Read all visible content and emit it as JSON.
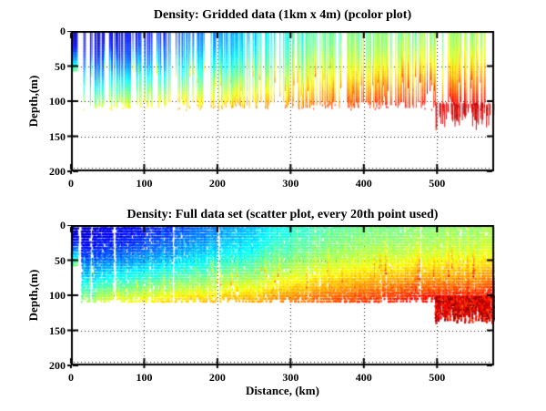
{
  "colors": {
    "background": "#ffffff",
    "axes": "#000000",
    "grid": "#222222",
    "text": "#000000"
  },
  "chart_data": [
    {
      "type": "pcolor",
      "title": "Density: Gridded data (1km x 4m) (pcolor plot)",
      "xlabel": "",
      "ylabel": "Depth,(m)",
      "xlim": [
        0,
        578
      ],
      "ylim": [
        200,
        0
      ],
      "y_reversed": true,
      "xticks": [
        0,
        100,
        200,
        300,
        400,
        500
      ],
      "yticks": [
        0,
        50,
        100,
        150,
        200
      ],
      "xtick_labels": [
        "0",
        "100",
        "200",
        "300",
        "400",
        "500"
      ],
      "ytick_labels": [
        "0",
        "50",
        "100",
        "150",
        "200"
      ],
      "grid": "dotted",
      "legend": null,
      "colormap": "jet",
      "field_model": {
        "seed": 20107,
        "column_pitch_km": 1,
        "cell_height_m": 4,
        "gap_fraction": 0.4,
        "long_gap_probability": 0.045,
        "surface_profile": {
          "x_km": [
            0,
            80,
            160,
            230,
            290,
            350,
            420,
            490,
            578
          ],
          "value": [
            0.05,
            0.13,
            0.22,
            0.3,
            0.4,
            0.47,
            0.5,
            0.52,
            0.54
          ]
        },
        "deep_profile": {
          "x_km": [
            0,
            60,
            150,
            250,
            350,
            460,
            578
          ],
          "value": [
            0.5,
            0.6,
            0.66,
            0.7,
            0.78,
            0.86,
            0.9
          ]
        },
        "depth_power": 1.6,
        "typical_bottom_m": [
          96,
          108
        ],
        "short_column_probability": 0.3,
        "short_column_bottom_m": [
          48,
          100
        ],
        "nearshore": {
          "x_max_km": 8,
          "bottom_m": 55,
          "gap_km": [
            9,
            14
          ]
        },
        "deep_dash_band": {
          "depth_m": [
            102,
            112
          ],
          "probability": 0.25
        },
        "deep_cluster": {
          "x_km": [
            497,
            578
          ],
          "depth_m": [
            102,
            134
          ],
          "value": [
            0.86,
            0.99
          ],
          "coverage": 0.55
        },
        "column_value_noise": 0.12,
        "cell_value_noise": 0.04
      }
    },
    {
      "type": "scatter",
      "title": "Density: Full data set (scatter plot, every 20th point used)",
      "xlabel": "Distance, (km)",
      "ylabel": "Depth,(m)",
      "xlim": [
        0,
        578
      ],
      "ylim": [
        200,
        0
      ],
      "y_reversed": true,
      "xticks": [
        0,
        100,
        200,
        300,
        400,
        500
      ],
      "yticks": [
        0,
        50,
        100,
        150,
        200
      ],
      "xtick_labels": [
        "0",
        "100",
        "200",
        "300",
        "400",
        "500"
      ],
      "ytick_labels": [
        "0",
        "50",
        "100",
        "150",
        "200"
      ],
      "grid": "dotted",
      "legend": null,
      "colormap": "jet",
      "field_model": {
        "seed": 40913,
        "column_pitch_km": 1,
        "row_pitch_m": 4,
        "marker_px": 2,
        "point_probability": 0.88,
        "column_gap_probability": 0.07,
        "long_gap_probability": 0.03,
        "surface_profile": {
          "x_km": [
            0,
            80,
            160,
            230,
            290,
            350,
            420,
            490,
            578
          ],
          "value": [
            0.05,
            0.13,
            0.22,
            0.3,
            0.4,
            0.47,
            0.5,
            0.52,
            0.54
          ]
        },
        "deep_profile": {
          "x_km": [
            0,
            60,
            150,
            250,
            350,
            460,
            578
          ],
          "value": [
            0.5,
            0.62,
            0.68,
            0.72,
            0.8,
            0.87,
            0.9
          ]
        },
        "depth_power": 1.6,
        "typical_bottom_m": [
          100,
          110
        ],
        "short_column_probability": 0.1,
        "short_column_bottom_m": [
          60,
          98
        ],
        "nearshore": {
          "x_max_km": 8,
          "bottom_m": 55,
          "gap_km": [
            9,
            13
          ]
        },
        "deep_cluster": {
          "x_km": [
            497,
            578
          ],
          "depth_m": [
            100,
            136
          ],
          "value": [
            0.8,
            1.0
          ],
          "coverage": 0.9
        },
        "column_value_noise": 0.07,
        "cell_value_noise": 0.04
      }
    }
  ]
}
